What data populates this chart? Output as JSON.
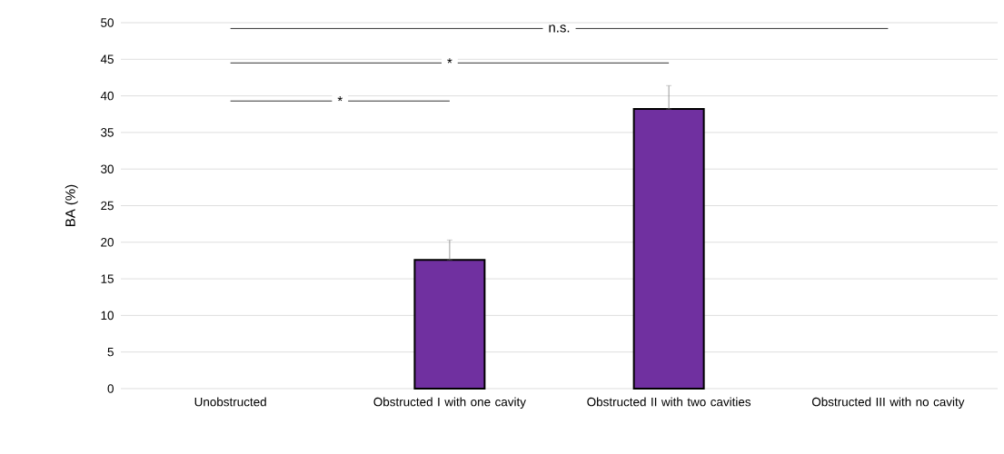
{
  "chart_data": {
    "type": "bar",
    "ylabel": "BA (%)",
    "categories": [
      "Unobstructed",
      "Obstructed I with one cavity",
      "Obstructed II with two cavities",
      "Obstructed III with no cavity"
    ],
    "values": [
      null,
      17.6,
      38.2,
      null
    ],
    "errors": [
      null,
      [
        17.6,
        20.3
      ],
      [
        38.2,
        41.4
      ],
      null
    ],
    "color": "#7030a0",
    "ylim": [
      0,
      50
    ],
    "yticks": [
      0,
      5,
      10,
      15,
      20,
      25,
      30,
      35,
      40,
      45,
      50
    ],
    "grid": "y",
    "annotations": [
      "*",
      "*",
      "n.s."
    ]
  }
}
